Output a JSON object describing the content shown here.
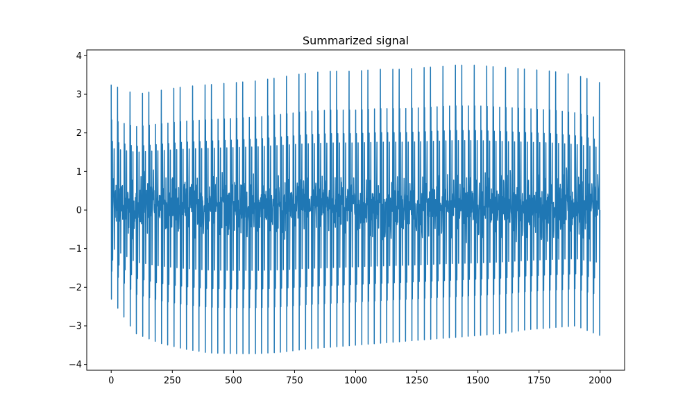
{
  "chart_data": {
    "type": "line",
    "title": "Summarized signal",
    "xlabel": "",
    "ylabel": "",
    "xlim": [
      -100,
      2100
    ],
    "ylim": [
      -4.15,
      4.15
    ],
    "x_ticks": [
      0,
      250,
      500,
      750,
      1000,
      1250,
      1500,
      1750,
      2000
    ],
    "y_ticks": [
      -4,
      -3,
      -2,
      -1,
      0,
      1,
      2,
      3,
      4
    ],
    "x_tick_labels": [
      "0",
      "250",
      "500",
      "750",
      "1000",
      "1250",
      "1500",
      "1750",
      "2000"
    ],
    "y_tick_labels": [
      "−4",
      "−3",
      "−2",
      "−1",
      "0",
      "1",
      "2",
      "3",
      "4"
    ],
    "grid": false,
    "legend": "none",
    "series": [
      {
        "color": "#1f77b4",
        "n_points": 2000,
        "x_range": [
          0,
          1999
        ],
        "description_of_shape": "dense oscillation with bursts of amplitude ~3.2-3.75 and a core band around -0.8 to 1.0",
        "peak_envelope_x": [
          0,
          100,
          200,
          300,
          400,
          500,
          600,
          700,
          800,
          900,
          1000,
          1100,
          1200,
          1300,
          1400,
          1500,
          1600,
          1700,
          1800,
          1900,
          2000
        ],
        "peak_envelope_y": [
          3.25,
          3.0,
          3.1,
          3.2,
          3.25,
          3.3,
          3.35,
          3.45,
          3.55,
          3.6,
          3.6,
          3.65,
          3.65,
          3.7,
          3.75,
          3.75,
          3.7,
          3.65,
          3.6,
          3.5,
          3.3
        ],
        "trough_envelope_y": [
          -2.3,
          -3.2,
          -3.45,
          -3.6,
          -3.7,
          -3.72,
          -3.72,
          -3.68,
          -3.6,
          -3.55,
          -3.5,
          -3.45,
          -3.4,
          -3.35,
          -3.3,
          -3.25,
          -3.2,
          -3.1,
          -3.05,
          -3.0,
          -3.25
        ]
      }
    ]
  },
  "colors": {
    "line": "#1f77b4",
    "axes": "#000000",
    "background": "#ffffff"
  }
}
